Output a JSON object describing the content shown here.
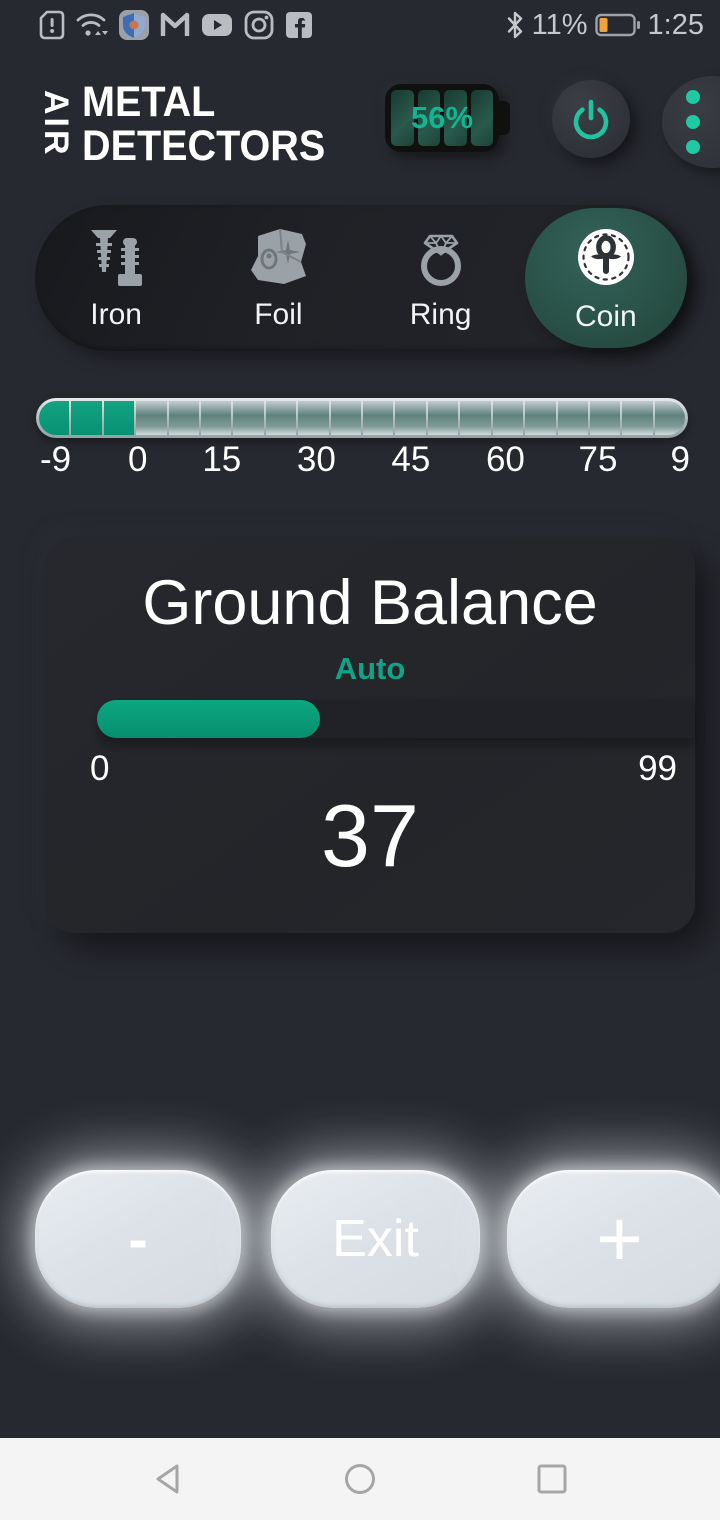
{
  "status_bar": {
    "time": "1:25",
    "phone_battery_percent": "11%",
    "left_icons": [
      "sim-alert-icon",
      "wifi-icon",
      "shield-app-icon",
      "gmail-icon",
      "youtube-icon",
      "instagram-icon",
      "facebook-icon"
    ]
  },
  "header": {
    "brand_vertical": "AIR",
    "brand_line1": "METAL",
    "brand_line2": "DETECTORS",
    "detector_battery_percent": "56%"
  },
  "tabs": [
    {
      "label": "Iron",
      "icon": "screws-icon",
      "active": false
    },
    {
      "label": "Foil",
      "icon": "foil-icon",
      "active": false
    },
    {
      "label": "Ring",
      "icon": "ring-icon",
      "active": false
    },
    {
      "label": "Coin",
      "icon": "coin-icon",
      "active": true
    }
  ],
  "scale": {
    "segments_total": 20,
    "segments_filled": 3,
    "labels": [
      "-9",
      "0",
      "15",
      "30",
      "45",
      "60",
      "75",
      "9"
    ],
    "label_positions": [
      3,
      15.6,
      28.5,
      43,
      57.5,
      72,
      86.2,
      98.8
    ]
  },
  "ground_balance": {
    "title": "Ground Balance",
    "mode": "Auto",
    "min": "0",
    "max_label": "99",
    "value": "37",
    "value_num": 37,
    "max": 99
  },
  "action_buttons": {
    "decrease": "-",
    "exit": "Exit",
    "increase": "+"
  },
  "colors": {
    "accent_teal": "#14b392",
    "scale_green": "#0a9b79",
    "selected_tab_teal": "#2b554b",
    "battery_low_orange": "#f0a33c",
    "button_glow": "#eef5fa"
  }
}
